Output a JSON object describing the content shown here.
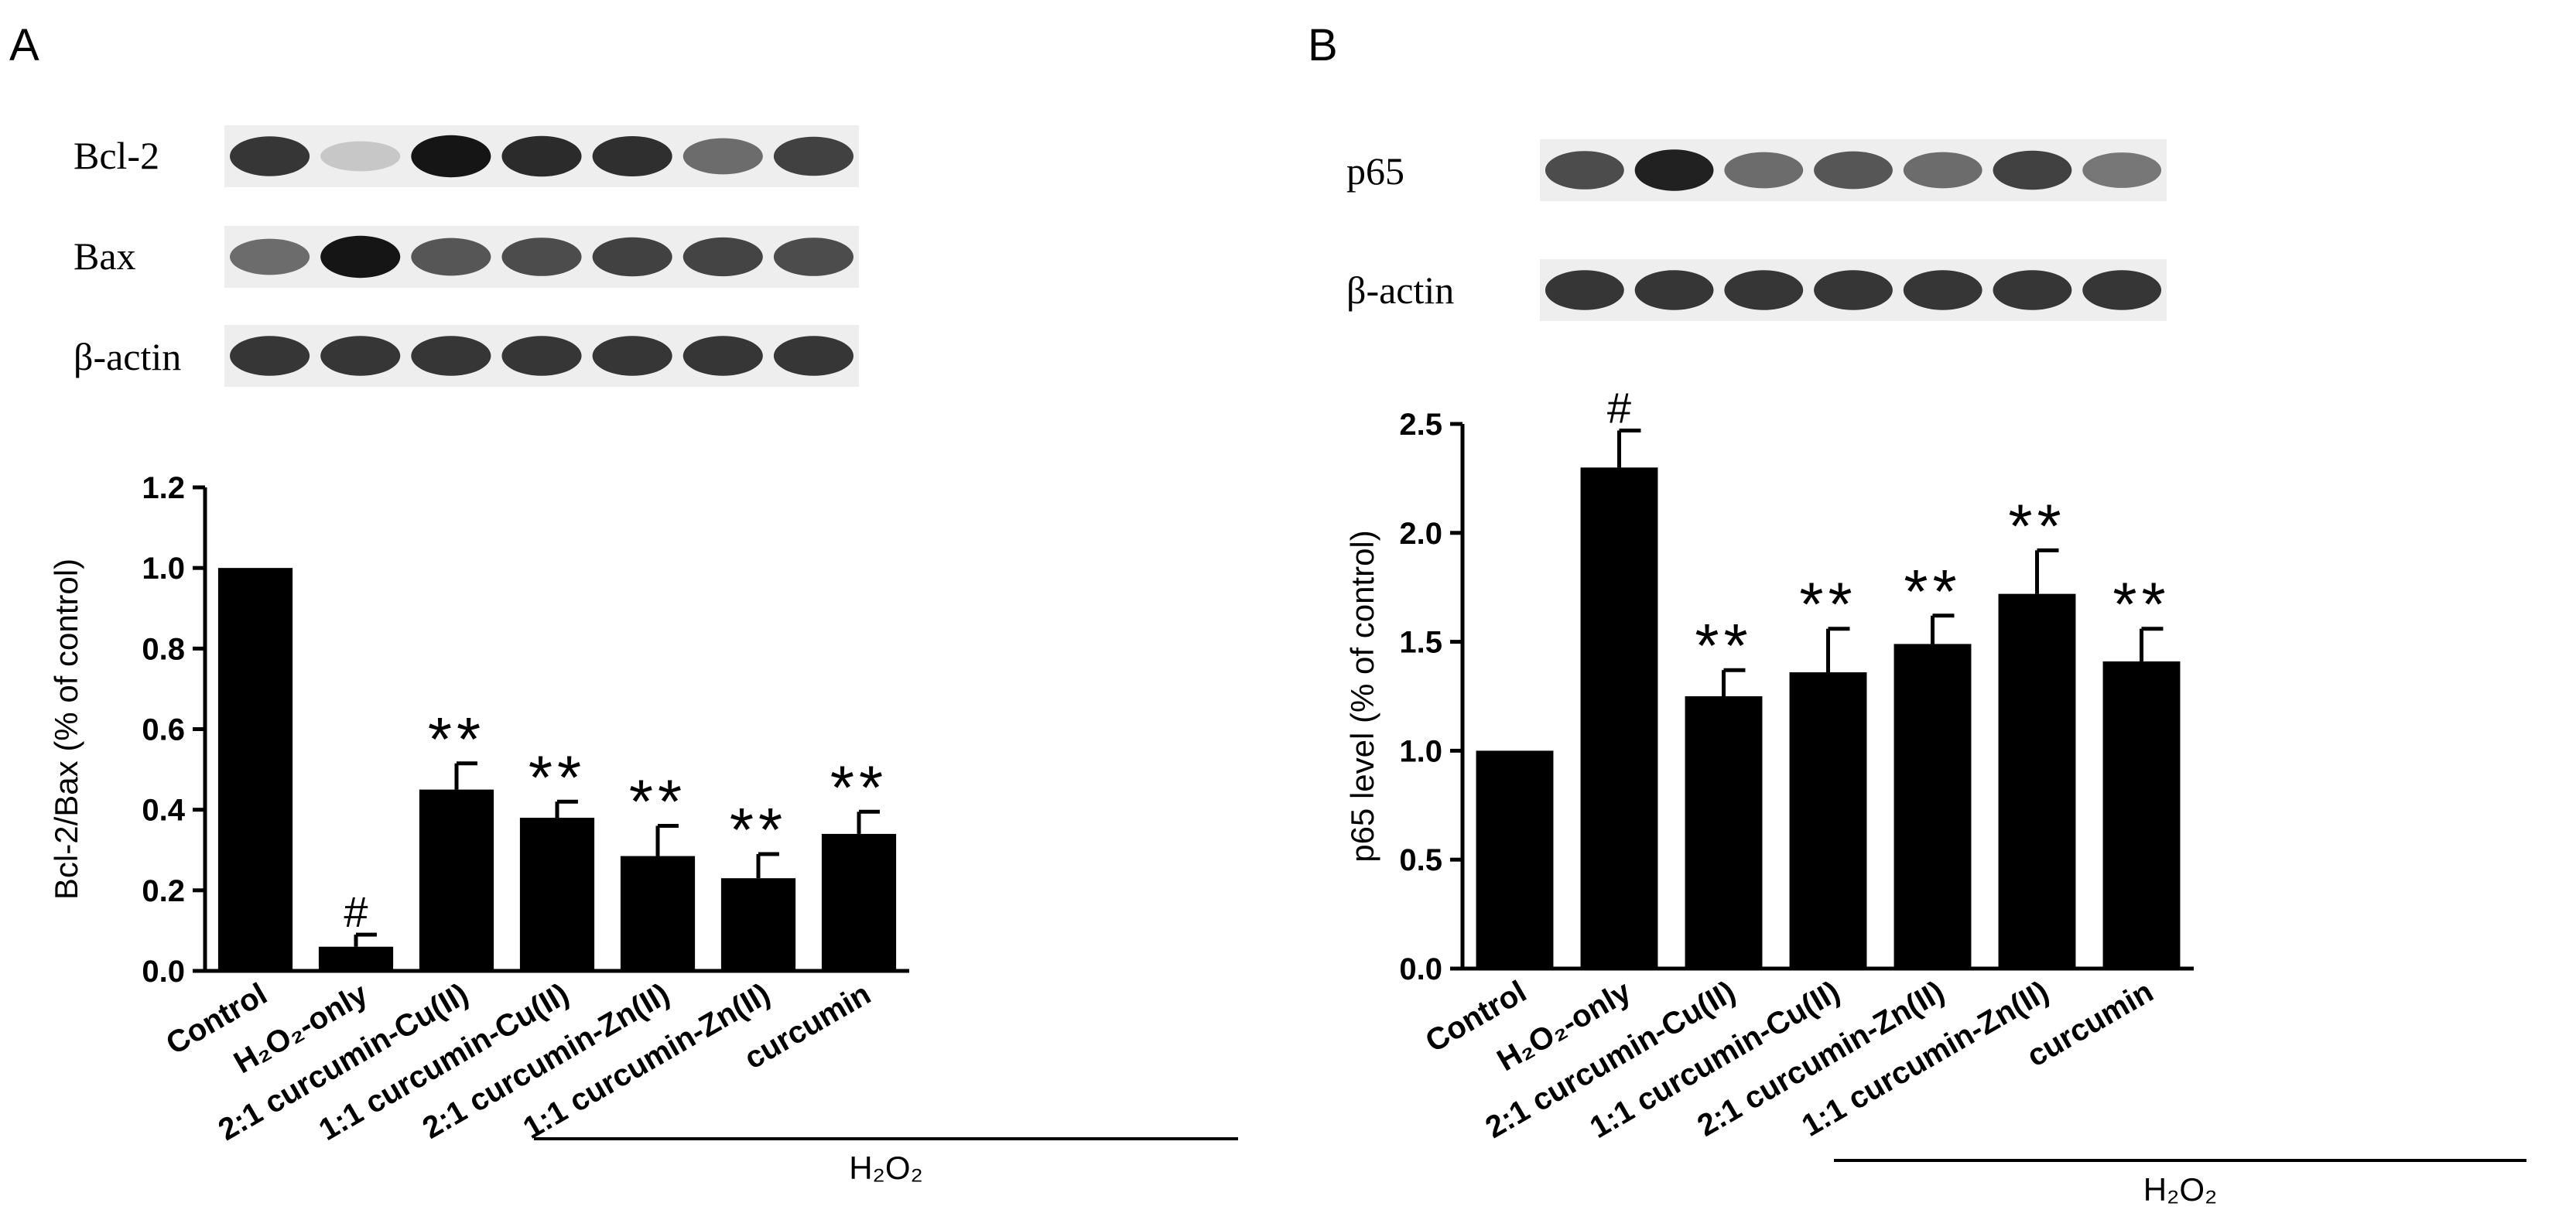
{
  "panels": [
    {
      "letter": "A",
      "blot_labels": [
        "Bcl-2",
        "Bax",
        "β-actin"
      ],
      "bracket_label": "H₂O₂",
      "chart_data": {
        "type": "bar",
        "categories": [
          "Control",
          "H₂O₂-only",
          "2:1 curcumin-Cu(II)",
          "1:1 curcumin-Cu(II)",
          "2:1 curcumin-Zn(II)",
          "1:1 curcumin-Zn(II)",
          "curcumin"
        ],
        "values": [
          1.0,
          0.06,
          0.45,
          0.38,
          0.285,
          0.23,
          0.34
        ],
        "errors": [
          0.0,
          0.03,
          0.065,
          0.04,
          0.075,
          0.06,
          0.055
        ],
        "annotations": [
          "",
          "#",
          "**",
          "**",
          "**",
          "**",
          "**"
        ],
        "ylabel": "Bcl-2/Bax  (% of control)",
        "ylim": [
          0,
          1.2
        ],
        "yticks": [
          "0.0",
          "0.2",
          "0.4",
          "0.6",
          "0.8",
          "1.0",
          "1.2"
        ],
        "grid": false,
        "legend": "none"
      }
    },
    {
      "letter": "B",
      "blot_labels": [
        "p65",
        "β-actin"
      ],
      "bracket_label": "H₂O₂",
      "chart_data": {
        "type": "bar",
        "categories": [
          "Control",
          "H₂O₂-only",
          "2:1 curcumin-Cu(II)",
          "1:1 curcumin-Cu(II)",
          "2:1 curcumin-Zn(II)",
          "1:1 curcumin-Zn(II)",
          "curcumin"
        ],
        "values": [
          1.0,
          2.3,
          1.25,
          1.36,
          1.49,
          1.72,
          1.41
        ],
        "errors": [
          0.0,
          0.17,
          0.12,
          0.2,
          0.13,
          0.2,
          0.15
        ],
        "annotations": [
          "",
          "#",
          "**",
          "**",
          "**",
          "**",
          "**"
        ],
        "ylabel": "p65 level  (% of control)",
        "ylim": [
          0,
          2.5
        ],
        "yticks": [
          "0.0",
          "0.5",
          "1.0",
          "1.5",
          "2.0",
          "2.5"
        ],
        "grid": false,
        "legend": "none"
      }
    }
  ],
  "blots": {
    "A": [
      [
        0.85,
        0.18,
        1.0,
        0.9,
        0.88,
        0.6,
        0.8
      ],
      [
        0.6,
        1.0,
        0.7,
        0.75,
        0.8,
        0.78,
        0.75
      ],
      [
        0.85,
        0.85,
        0.85,
        0.85,
        0.85,
        0.85,
        0.85
      ]
    ],
    "B": [
      [
        0.75,
        0.95,
        0.6,
        0.7,
        0.6,
        0.8,
        0.55
      ],
      [
        0.85,
        0.85,
        0.85,
        0.85,
        0.85,
        0.85,
        0.85
      ]
    ]
  },
  "colors": {
    "bar": "#000000",
    "band": "#151515",
    "blot_bg": "#eeeeee"
  }
}
